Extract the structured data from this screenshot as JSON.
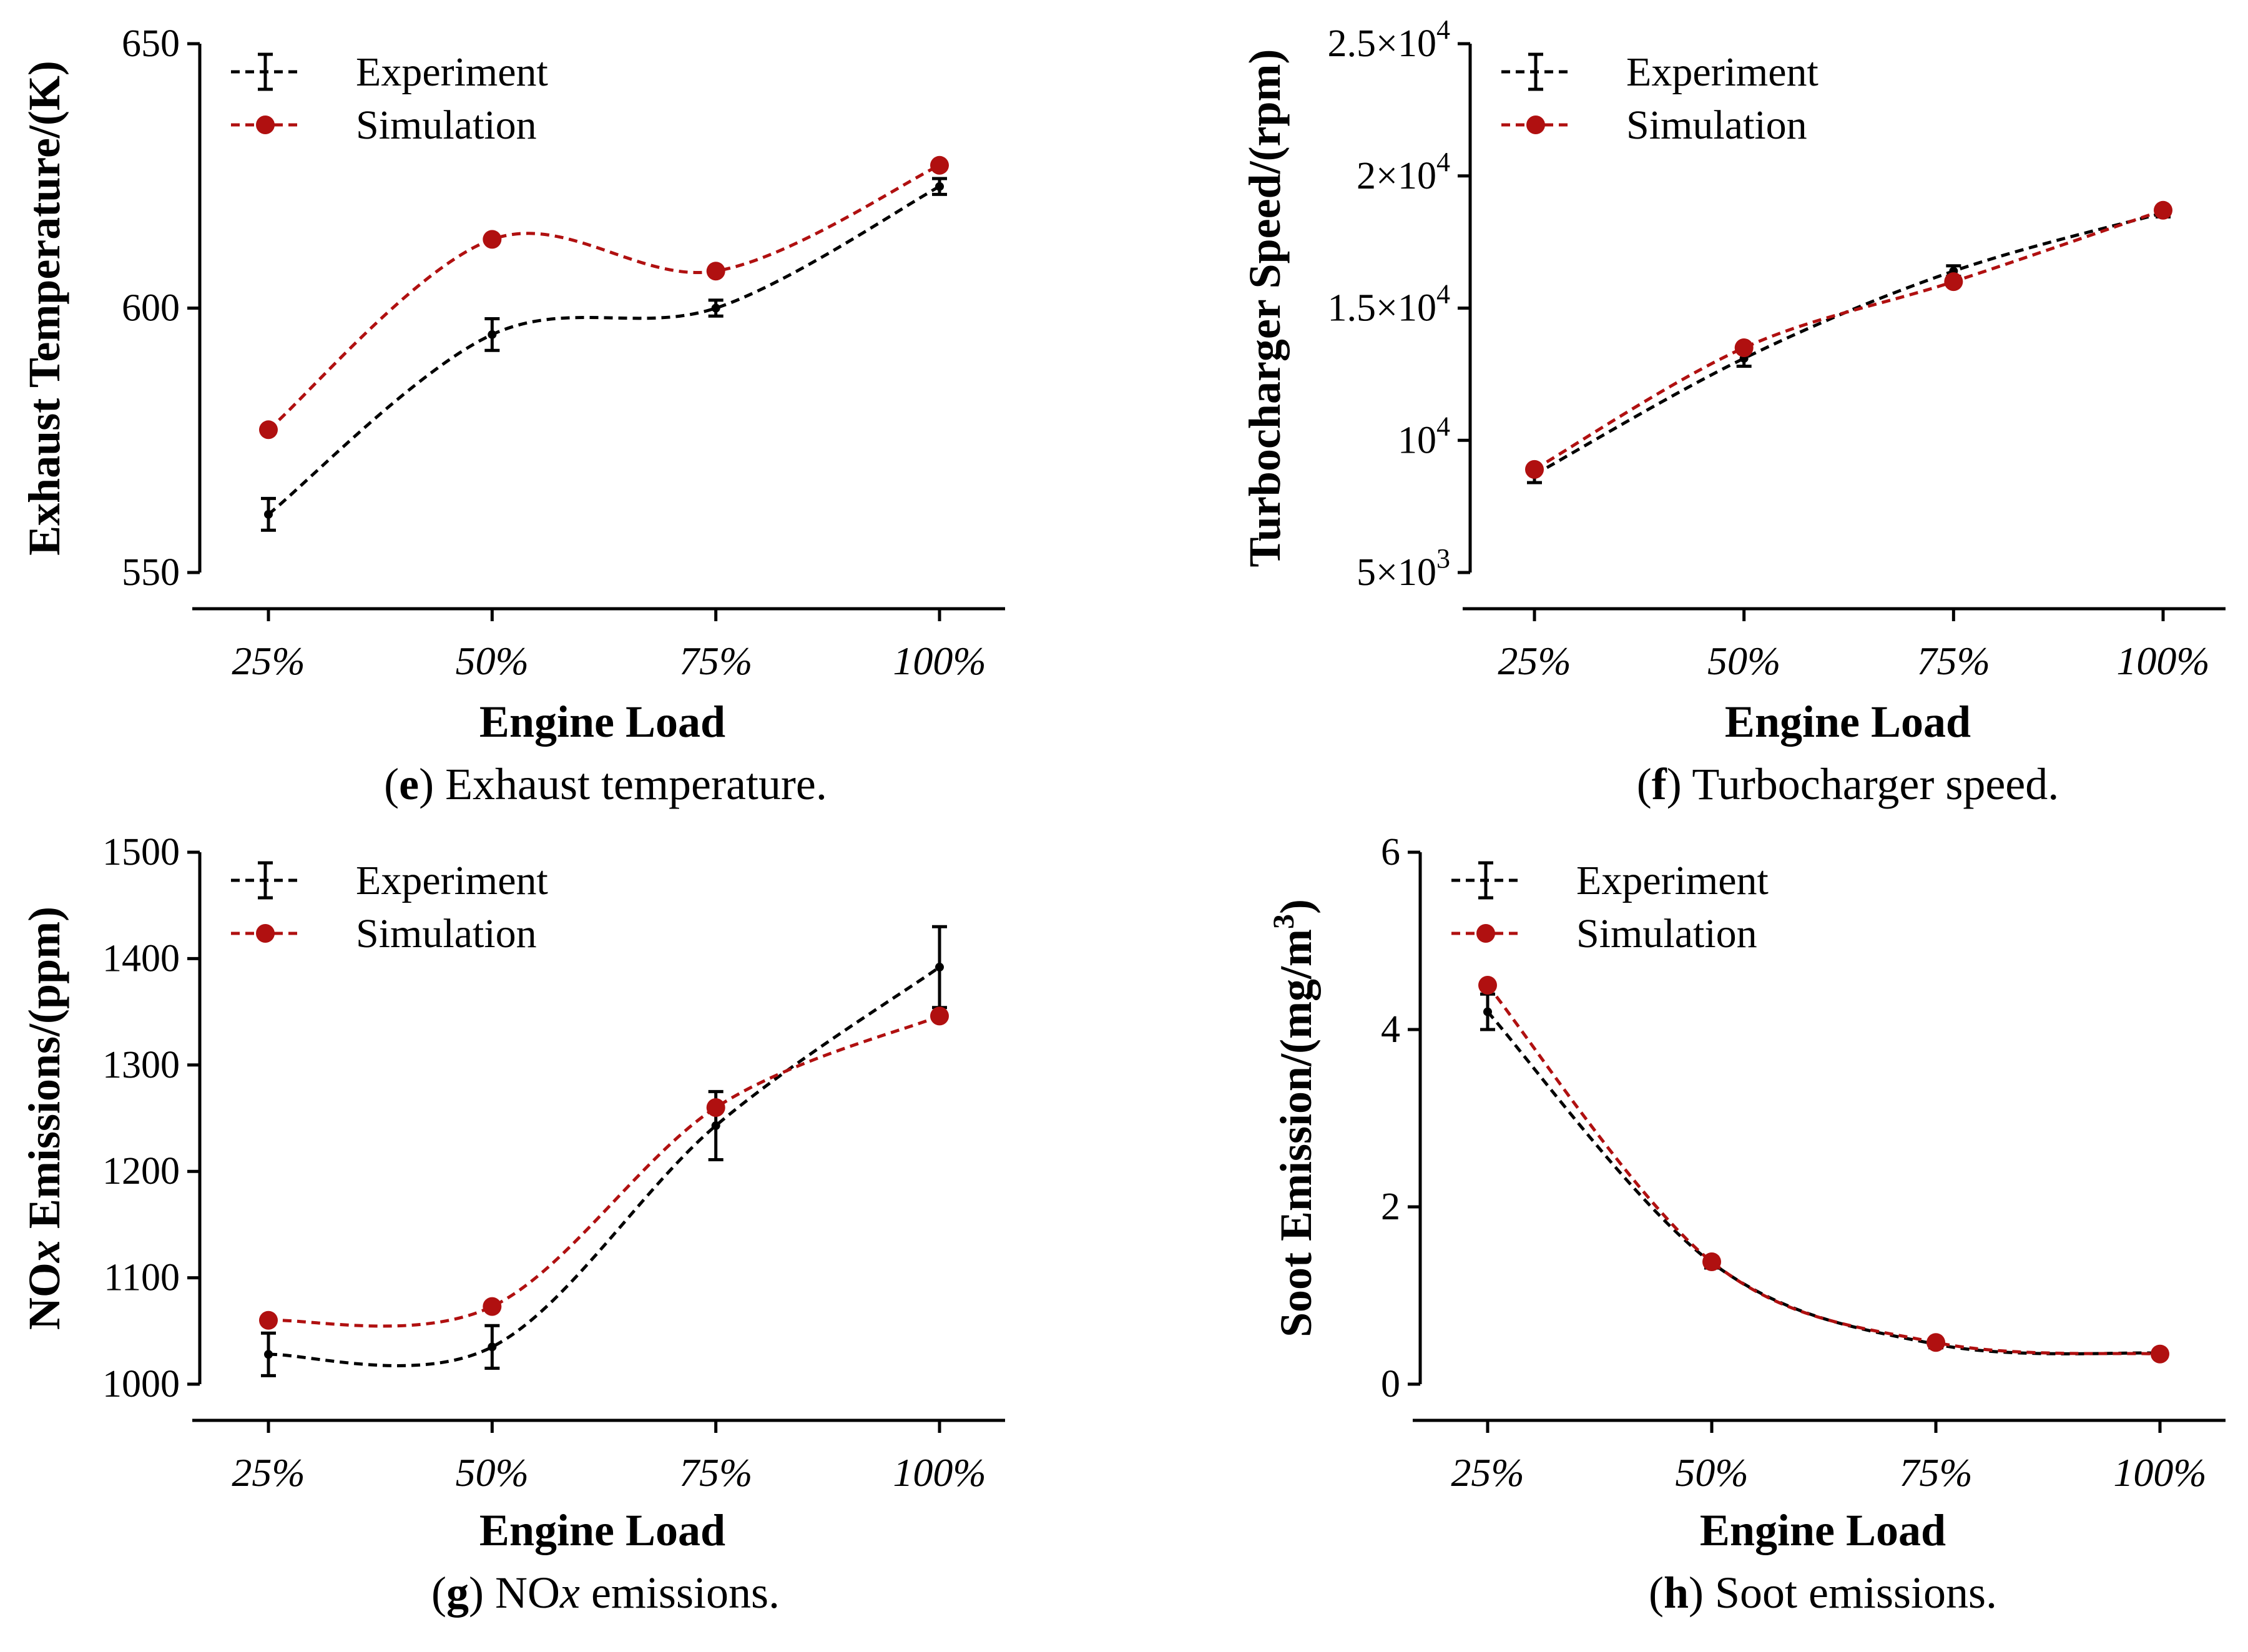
{
  "colors": {
    "experiment": "#000000",
    "simulation": "#b01010"
  },
  "chart_data": [
    {
      "id": "e",
      "type": "line",
      "caption_label": "e",
      "caption_text": " Exhaust temperature.",
      "xlabel": "Engine Load",
      "ylabel": "Exhaust Temperature/(K)",
      "categories": [
        "25%",
        "50%",
        "75%",
        "100%"
      ],
      "ylim": [
        550,
        650
      ],
      "yticks": [
        550,
        600,
        650
      ],
      "ytick_labels": [
        "550",
        "600",
        "650"
      ],
      "legend": "top-left",
      "series": [
        {
          "name": "Experiment",
          "values": [
            561,
            595,
            600,
            623
          ],
          "errors": [
            3,
            3,
            1.5,
            1.5
          ]
        },
        {
          "name": "Simulation",
          "values": [
            577,
            613,
            607,
            627
          ]
        }
      ]
    },
    {
      "id": "f",
      "type": "line",
      "caption_label": "f",
      "caption_text": " Turbocharger speed.",
      "xlabel": "Engine Load",
      "ylabel": "Turbocharger Speed/(rpm)",
      "categories": [
        "25%",
        "50%",
        "75%",
        "100%"
      ],
      "ylim": [
        5000,
        25000
      ],
      "yticks": [
        5000,
        10000,
        15000,
        20000,
        25000
      ],
      "ytick_labels": [
        {
          "base": "5×10",
          "exp": "3"
        },
        {
          "base": "10",
          "exp": "4"
        },
        {
          "base": "1.5×10",
          "exp": "4"
        },
        {
          "base": "2×10",
          "exp": "4"
        },
        {
          "base": "2.5×10",
          "exp": "4"
        }
      ],
      "legend": "top-left",
      "series": [
        {
          "name": "Experiment",
          "values": [
            8700,
            13100,
            16400,
            18600
          ],
          "errors": [
            300,
            300,
            200,
            150
          ]
        },
        {
          "name": "Simulation",
          "values": [
            8900,
            13500,
            16000,
            18700
          ]
        }
      ]
    },
    {
      "id": "g",
      "type": "line",
      "caption_label": "g",
      "caption_pre": " NO",
      "caption_italic": "x",
      "caption_post": " emissions.",
      "xlabel": "Engine Load",
      "ylabel_pre": "NO",
      "ylabel_italic": "x",
      "ylabel_post": " Emissions/(ppm)",
      "categories": [
        "25%",
        "50%",
        "75%",
        "100%"
      ],
      "ylim": [
        1000,
        1500
      ],
      "yticks": [
        1000,
        1100,
        1200,
        1300,
        1400,
        1500
      ],
      "ytick_labels": [
        "1000",
        "1100",
        "1200",
        "1300",
        "1400",
        "1500"
      ],
      "legend": "top-left",
      "series": [
        {
          "name": "Experiment",
          "values": [
            1028,
            1035,
            1243,
            1392
          ],
          "errors": [
            20,
            20,
            32,
            38
          ]
        },
        {
          "name": "Simulation",
          "values": [
            1060,
            1073,
            1260,
            1346
          ]
        }
      ]
    },
    {
      "id": "h",
      "type": "line",
      "caption_label": "h",
      "caption_text": " Soot emissions.",
      "xlabel": "Engine Load",
      "ylabel": "Soot Emission/(mg/m",
      "ylabel_sup": "3",
      "ylabel_post": ")",
      "categories": [
        "25%",
        "50%",
        "75%",
        "100%"
      ],
      "ylim": [
        0,
        6
      ],
      "yticks": [
        0,
        2,
        4,
        6
      ],
      "ytick_labels": [
        "0",
        "2",
        "4",
        "6"
      ],
      "legend": "top-left",
      "series": [
        {
          "name": "Experiment",
          "values": [
            4.2,
            1.37,
            0.45,
            0.35
          ],
          "errors": [
            0.2,
            0.06,
            0.04,
            0.03
          ]
        },
        {
          "name": "Simulation",
          "values": [
            4.5,
            1.38,
            0.47,
            0.34
          ]
        }
      ]
    }
  ]
}
